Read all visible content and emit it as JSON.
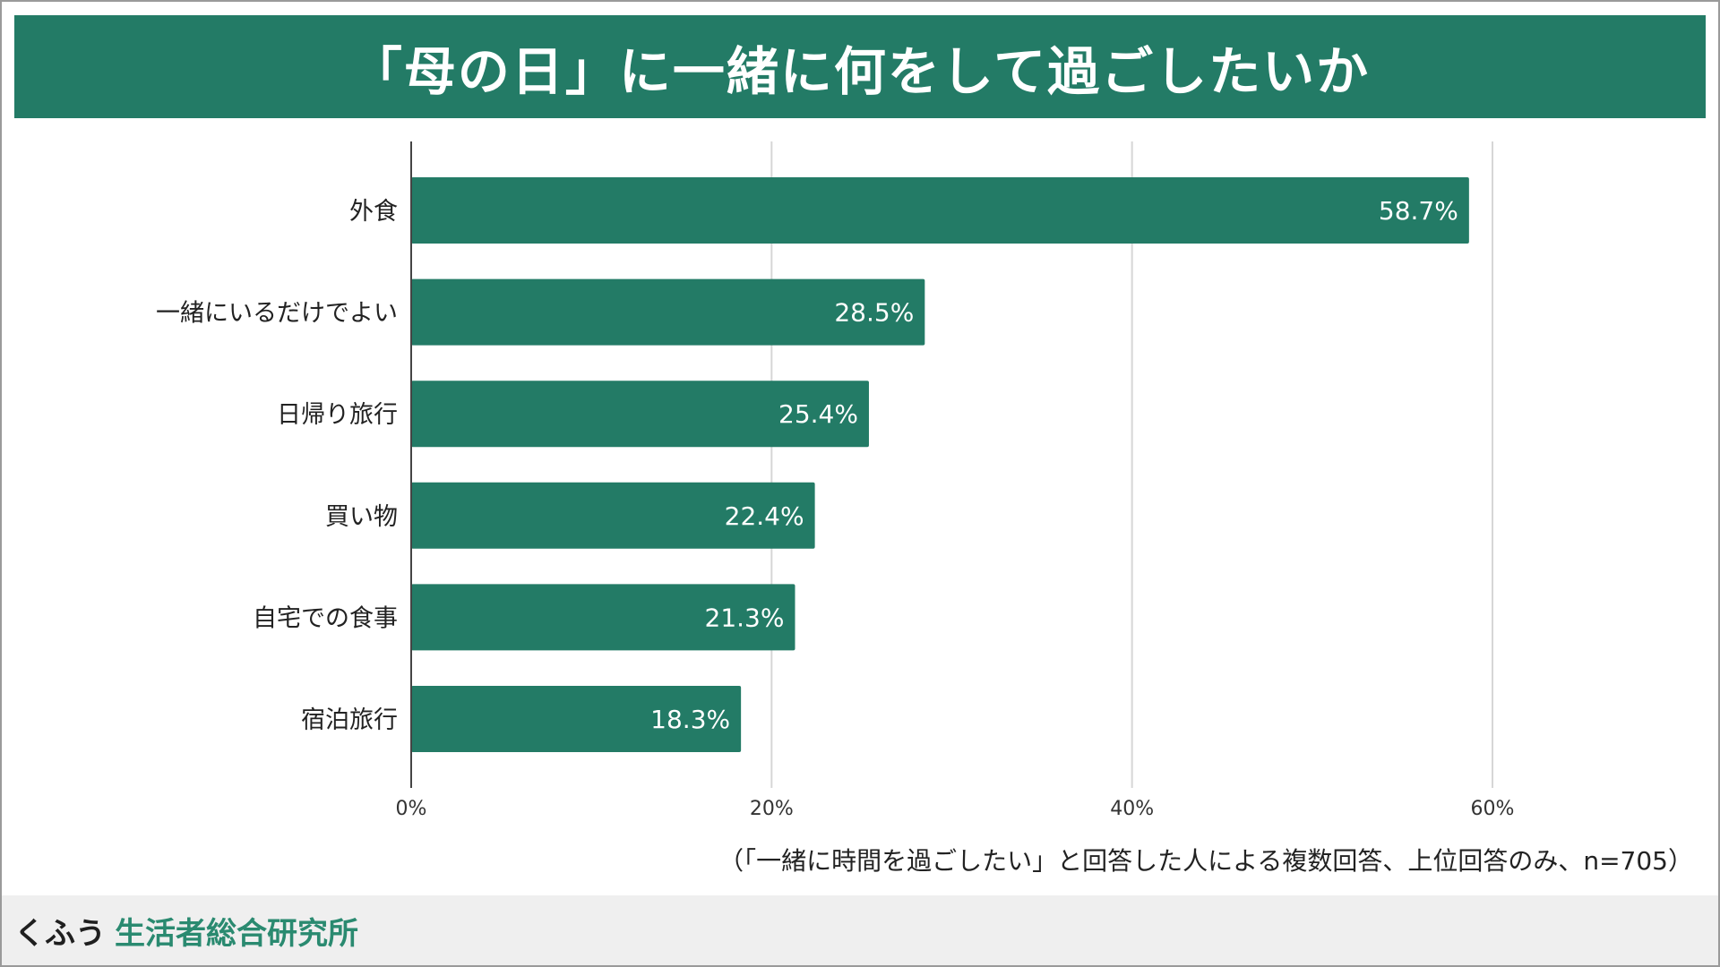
{
  "colors": {
    "accent": "#237b66",
    "bar": "#237b66",
    "grid": "#d6d6d6",
    "axis": "#444444",
    "footer_bg": "#efefef",
    "org": "#2a8a70"
  },
  "header": {
    "title": "「母の日」に一緒に何をして過ごしたいか"
  },
  "chart_data": {
    "type": "bar",
    "orientation": "horizontal",
    "title": "「母の日」に一緒に何をして過ごしたいか",
    "categories": [
      "外食",
      "一緒にいるだけでよい",
      "日帰り旅行",
      "買い物",
      "自宅での食事",
      "宿泊旅行"
    ],
    "values": [
      58.7,
      28.5,
      25.4,
      22.4,
      21.3,
      18.3
    ],
    "value_labels": [
      "58.7%",
      "28.5%",
      "25.4%",
      "22.4%",
      "21.3%",
      "18.3%"
    ],
    "xlim": [
      0,
      60
    ],
    "xticks": [
      0,
      20,
      40,
      60
    ],
    "xtick_labels": [
      "0%",
      "20%",
      "40%",
      "60%"
    ],
    "xlabel": "",
    "ylabel": "",
    "grid": true
  },
  "note": "（「一緒に時間を過ごしたい」と回答した人による複数回答、上位回答のみ、n=705）",
  "footer": {
    "brand": "くふう",
    "org": "生活者総合研究所"
  }
}
